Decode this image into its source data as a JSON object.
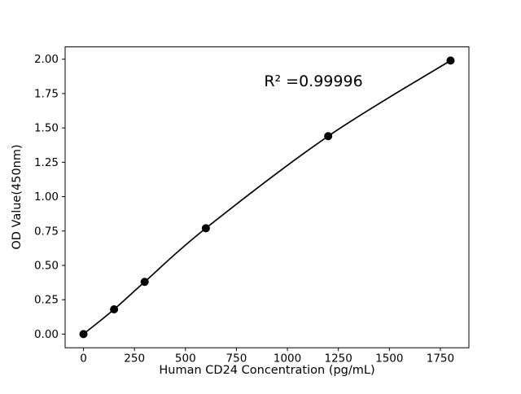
{
  "figure": {
    "background": "#ffffff"
  },
  "chart_data": {
    "type": "scatter",
    "subtype": "standard-curve-with-smooth-fit-line",
    "x": [
      0,
      150,
      300,
      600,
      1200,
      1800
    ],
    "y": [
      0.0,
      0.18,
      0.38,
      0.77,
      1.44,
      1.99
    ],
    "annotation": "R² =0.99996",
    "xlabel": "Human CD24 Concentration (pg/mL)",
    "ylabel": "OD Value(450nm)",
    "xlim": [
      -90,
      1890
    ],
    "ylim": [
      -0.0995,
      2.0895
    ],
    "xticks": {
      "values": [
        0,
        250,
        500,
        750,
        1000,
        1250,
        1500,
        1750
      ],
      "labels": [
        "0",
        "250",
        "500",
        "750",
        "1000",
        "1250",
        "1500",
        "1750"
      ]
    },
    "yticks": {
      "values": [
        0.0,
        0.25,
        0.5,
        0.75,
        1.0,
        1.25,
        1.5,
        1.75,
        2.0
      ],
      "labels": [
        "0.00",
        "0.25",
        "0.50",
        "0.75",
        "1.00",
        "1.25",
        "1.50",
        "1.75",
        "2.00"
      ]
    },
    "grid": false,
    "marker_color": "#000000",
    "line_color": "#000000",
    "border_color": "#000000"
  }
}
